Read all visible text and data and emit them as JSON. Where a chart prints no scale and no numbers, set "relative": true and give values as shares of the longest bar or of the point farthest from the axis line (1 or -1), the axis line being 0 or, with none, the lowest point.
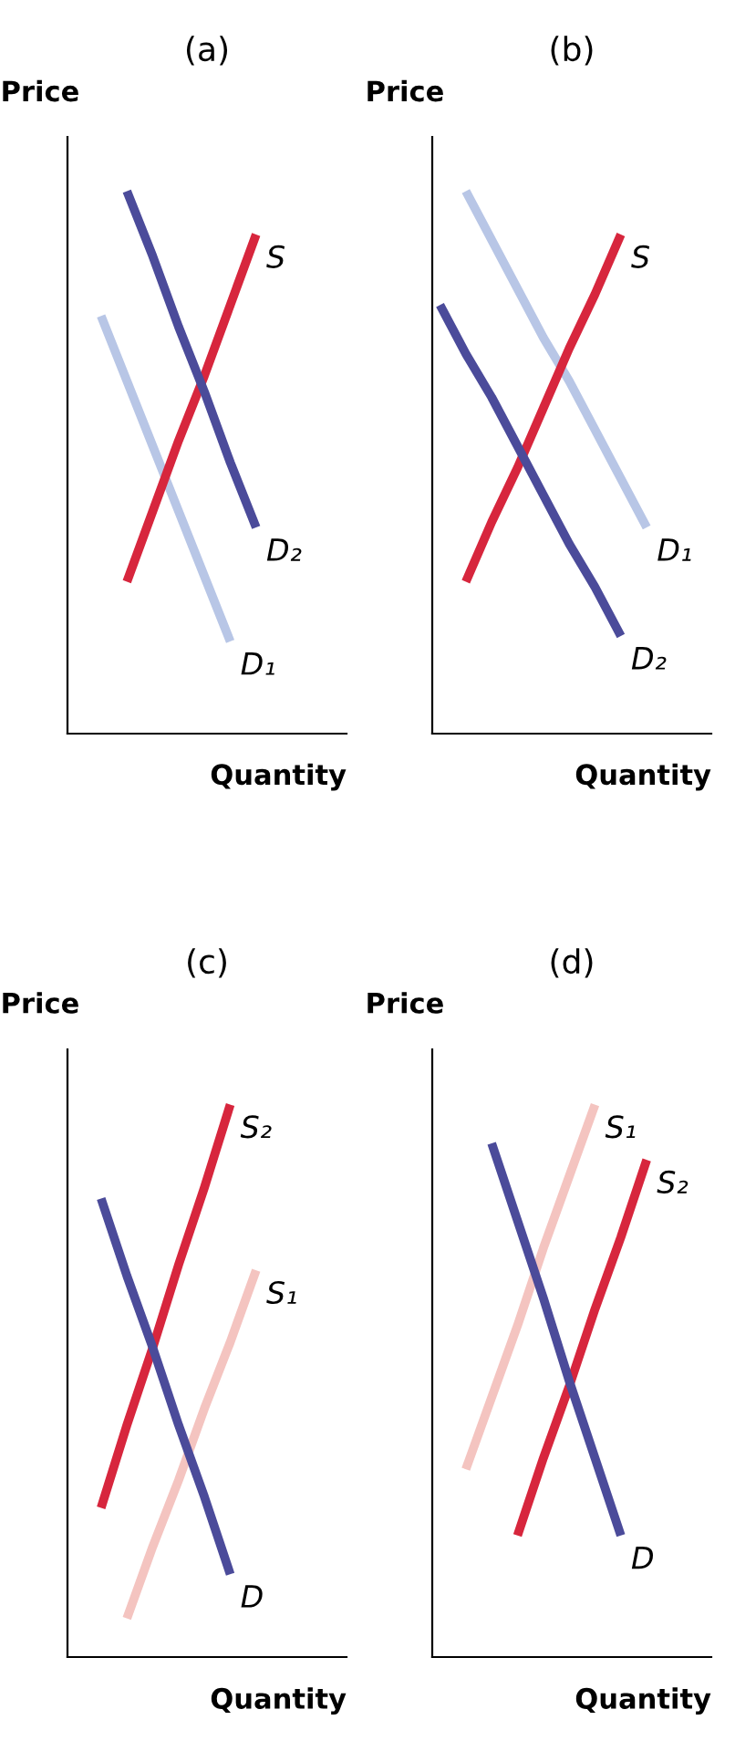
{
  "chart_data": [
    {
      "type": "line",
      "title": "(a)",
      "xlabel": "Quantity",
      "ylabel": "Price",
      "relative": true,
      "marker": "none",
      "line_style": "solid",
      "categories": [
        null,
        null,
        null,
        null,
        null,
        null,
        null,
        null,
        null,
        null,
        null
      ],
      "series": [
        {
          "name": "D₁",
          "color": "#b8c6e6",
          "values": [
            null,
            0.77,
            0.65,
            0.53,
            0.41,
            0.29,
            0.17,
            null,
            null,
            null,
            null
          ]
        },
        {
          "name": "S",
          "color": "#d7263d",
          "values": [
            null,
            null,
            0.28,
            0.41,
            0.54,
            0.66,
            0.79,
            0.92,
            null,
            null,
            null
          ]
        },
        {
          "name": "D₂",
          "color": "#4b4b9a",
          "values": [
            null,
            null,
            1.0,
            0.88,
            0.75,
            0.63,
            0.5,
            0.38,
            null,
            null,
            null
          ]
        }
      ]
    },
    {
      "type": "line",
      "title": "(b)",
      "xlabel": "Quantity",
      "ylabel": "Price",
      "relative": true,
      "marker": "none",
      "line_style": "solid",
      "categories": [
        null,
        null,
        null,
        null,
        null,
        null,
        null,
        null,
        null,
        null,
        null
      ],
      "series": [
        {
          "name": "D₁",
          "color": "#b8c6e6",
          "values": [
            null,
            1.0,
            0.91,
            0.82,
            0.73,
            0.65,
            0.56,
            0.47,
            0.38,
            null,
            null
          ]
        },
        {
          "name": "S",
          "color": "#d7263d",
          "values": [
            null,
            0.28,
            0.39,
            0.49,
            0.6,
            0.71,
            0.81,
            0.92,
            null,
            null,
            null
          ]
        },
        {
          "name": "D₂",
          "color": "#4b4b9a",
          "values": [
            0.79,
            0.7,
            0.62,
            0.53,
            0.44,
            0.35,
            0.27,
            0.18,
            null,
            null,
            null
          ]
        }
      ]
    },
    {
      "type": "line",
      "title": "(c)",
      "xlabel": "Quantity",
      "ylabel": "Price",
      "relative": true,
      "marker": "none",
      "line_style": "solid",
      "categories": [
        null,
        null,
        null,
        null,
        null,
        null,
        null,
        null,
        null,
        null,
        null
      ],
      "series": [
        {
          "name": "S₁",
          "color": "#f4c4c0",
          "values": [
            null,
            null,
            0.07,
            0.2,
            0.32,
            0.45,
            0.57,
            0.7,
            null,
            null,
            null
          ]
        },
        {
          "name": "S₂",
          "color": "#d7263d",
          "values": [
            null,
            0.27,
            0.42,
            0.56,
            0.71,
            0.85,
            1.0,
            null,
            null,
            null,
            null
          ]
        },
        {
          "name": "D",
          "color": "#4b4b9a",
          "values": [
            null,
            0.83,
            0.69,
            0.56,
            0.42,
            0.29,
            0.15,
            null,
            null,
            null,
            null
          ]
        }
      ]
    },
    {
      "type": "line",
      "title": "(d)",
      "xlabel": "Quantity",
      "ylabel": "Price",
      "relative": true,
      "marker": "none",
      "line_style": "solid",
      "categories": [
        null,
        null,
        null,
        null,
        null,
        null,
        null,
        null,
        null,
        null,
        null
      ],
      "series": [
        {
          "name": "S₁",
          "color": "#f4c4c0",
          "values": [
            null,
            0.34,
            0.47,
            0.6,
            0.74,
            0.87,
            1.0,
            null,
            null,
            null,
            null
          ]
        },
        {
          "name": "S₂",
          "color": "#d7263d",
          "values": [
            null,
            null,
            null,
            0.22,
            0.36,
            0.49,
            0.63,
            0.76,
            0.9,
            null,
            null
          ]
        },
        {
          "name": "D",
          "color": "#4b4b9a",
          "values": [
            null,
            null,
            0.93,
            0.79,
            0.65,
            0.5,
            0.36,
            0.22,
            null,
            null,
            null
          ]
        }
      ]
    }
  ]
}
